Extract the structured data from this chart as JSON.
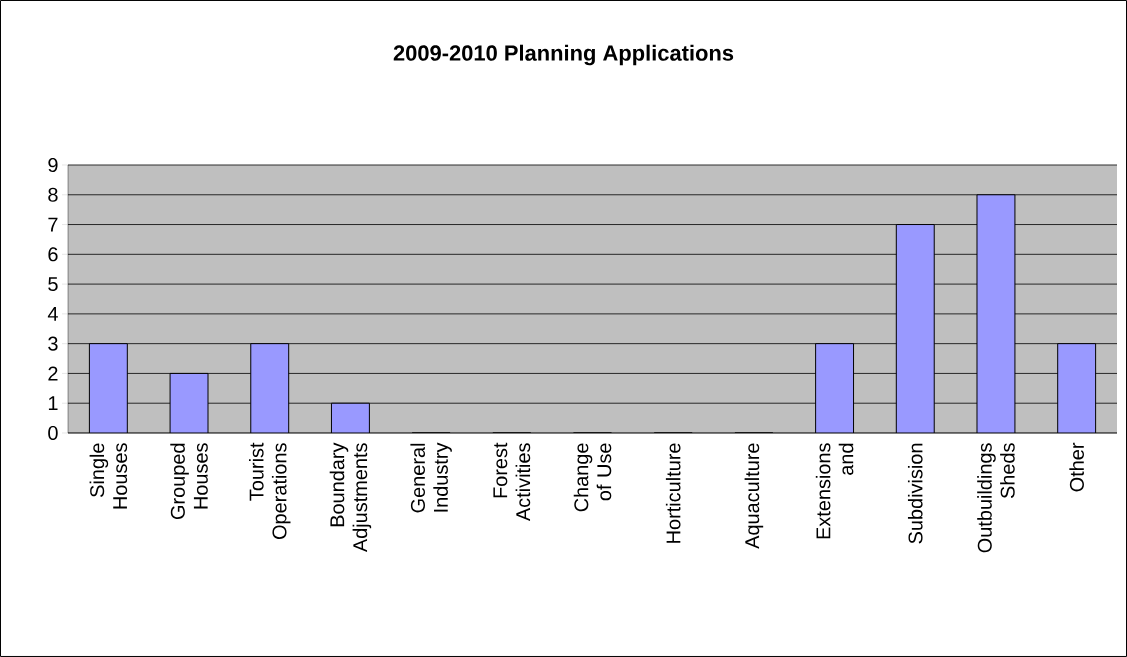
{
  "chart_data": {
    "type": "bar",
    "title": "2009-2010 Planning Applications",
    "categories": [
      "Single Houses",
      "Grouped Houses",
      "Tourist Operations",
      "Boundary Adjustments",
      "General Industry",
      "Forest Activities",
      "Change of Use",
      "Horticulture",
      "Aquaculture",
      "Extensions and",
      "Subdivision",
      "Outbuildings Sheds",
      "Other"
    ],
    "values": [
      3,
      2,
      3,
      1,
      0,
      0,
      0,
      0,
      0,
      3,
      7,
      8,
      3
    ],
    "color": "#9999ff",
    "ylim": [
      0,
      9
    ],
    "yticks": [
      0,
      1,
      2,
      3,
      4,
      5,
      6,
      7,
      8,
      9
    ],
    "grid": "y"
  }
}
